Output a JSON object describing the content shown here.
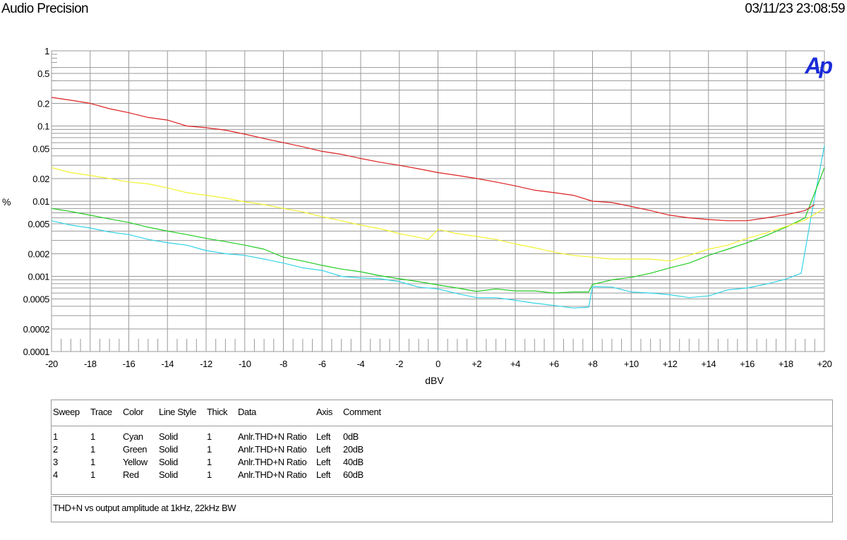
{
  "header": {
    "brand": "Audio Precision",
    "timestamp": "03/11/23 23:08:59"
  },
  "logo_text": "Ap",
  "colors": {
    "logo": "#1a2cd8",
    "grid": "#9a9a9a",
    "cyan": "#33d3e6",
    "green": "#22cc22",
    "yellow": "#f2f230",
    "red": "#dd2020"
  },
  "chart_data": {
    "type": "line",
    "xlabel": "dBV",
    "ylabel": "%",
    "xlim": [
      -20,
      20
    ],
    "ylim": [
      0.0001,
      1
    ],
    "yscale": "log",
    "grid": true,
    "x_ticks": [
      "-20",
      "-18",
      "-16",
      "-14",
      "-12",
      "-10",
      "-8",
      "-6",
      "-4",
      "-2",
      "0",
      "+2",
      "+4",
      "+6",
      "+8",
      "+10",
      "+12",
      "+14",
      "+16",
      "+18",
      "+20"
    ],
    "y_ticks": [
      "1",
      "0.5",
      "0.2",
      "0.1",
      "0.05",
      "0.02",
      "0.01",
      "0.005",
      "0.002",
      "0.001",
      "0.0005",
      "0.0002",
      "0.0001"
    ],
    "series": [
      {
        "name": "Cyan",
        "color": "#33d3e6",
        "x": [
          -20,
          -19,
          -18,
          -17,
          -16,
          -15,
          -14,
          -13,
          -12,
          -11,
          -10,
          -9,
          -8,
          -7,
          -6,
          -5,
          -4,
          -3,
          -2,
          -1,
          0,
          1,
          2,
          3,
          4,
          5,
          6,
          7,
          7.8,
          8,
          9,
          10,
          11,
          12,
          13,
          14,
          15,
          16,
          17,
          18,
          18.8,
          19.3,
          20
        ],
        "y": [
          0.0055,
          0.0048,
          0.0044,
          0.0039,
          0.0036,
          0.0031,
          0.0028,
          0.0026,
          0.0022,
          0.002,
          0.0019,
          0.0017,
          0.0015,
          0.0013,
          0.0012,
          0.001,
          0.00095,
          0.00093,
          0.00085,
          0.00072,
          0.00068,
          0.00059,
          0.00052,
          0.00052,
          0.00048,
          0.00044,
          0.00041,
          0.00038,
          0.00039,
          0.00073,
          0.00072,
          0.00062,
          0.0006,
          0.00057,
          0.00052,
          0.00055,
          0.00066,
          0.0007,
          0.00079,
          0.00092,
          0.0011,
          0.006,
          0.055
        ]
      },
      {
        "name": "Green",
        "color": "#22cc22",
        "x": [
          -20,
          -19,
          -18,
          -17,
          -16,
          -15,
          -14,
          -13,
          -12,
          -11,
          -10,
          -9,
          -8,
          -7,
          -6,
          -5,
          -4,
          -3,
          -2,
          -1,
          0,
          1,
          2,
          3,
          4,
          5,
          6,
          7,
          7.8,
          8,
          9,
          10,
          11,
          12,
          13,
          14,
          15,
          16,
          17,
          18,
          19,
          20
        ],
        "y": [
          0.008,
          0.0073,
          0.0065,
          0.0058,
          0.0052,
          0.0045,
          0.004,
          0.0036,
          0.0032,
          0.0029,
          0.0026,
          0.0023,
          0.0018,
          0.0016,
          0.0014,
          0.00125,
          0.00115,
          0.00102,
          0.00093,
          0.00085,
          0.00077,
          0.0007,
          0.00063,
          0.00068,
          0.00064,
          0.00064,
          0.0006,
          0.00062,
          0.00062,
          0.00078,
          0.0009,
          0.00097,
          0.0011,
          0.0013,
          0.0015,
          0.0019,
          0.0023,
          0.0028,
          0.0035,
          0.0045,
          0.006,
          0.028
        ]
      },
      {
        "name": "Yellow",
        "color": "#f2f230",
        "x": [
          -20,
          -19,
          -18,
          -17,
          -16,
          -15,
          -14,
          -13,
          -12,
          -11,
          -10,
          -9,
          -8,
          -7,
          -6,
          -5,
          -4,
          -3,
          -2,
          -1,
          -0.5,
          0,
          1,
          2,
          3,
          4,
          5,
          6,
          7,
          8,
          9,
          10,
          11,
          12,
          13,
          14,
          15,
          16,
          17,
          18,
          19,
          20
        ],
        "y": [
          0.028,
          0.024,
          0.022,
          0.02,
          0.018,
          0.017,
          0.015,
          0.013,
          0.012,
          0.011,
          0.0098,
          0.009,
          0.008,
          0.0072,
          0.0062,
          0.0055,
          0.0048,
          0.0043,
          0.0037,
          0.0033,
          0.0031,
          0.0042,
          0.0037,
          0.0034,
          0.0031,
          0.0027,
          0.0024,
          0.0021,
          0.0019,
          0.0018,
          0.0017,
          0.0017,
          0.0017,
          0.0016,
          0.0019,
          0.0023,
          0.0026,
          0.0032,
          0.0038,
          0.0046,
          0.0056,
          0.008
        ]
      },
      {
        "name": "Red",
        "color": "#dd2020",
        "x": [
          -20,
          -19,
          -18,
          -17,
          -16,
          -15,
          -14,
          -13,
          -12,
          -11,
          -10,
          -9,
          -8,
          -7,
          -6,
          -5,
          -4,
          -3,
          -2,
          -1,
          0,
          1,
          2,
          3,
          4,
          5,
          6,
          7,
          8,
          9,
          10,
          11,
          12,
          13,
          14,
          15,
          16,
          17,
          18,
          19,
          19.5
        ],
        "y": [
          0.24,
          0.22,
          0.2,
          0.17,
          0.15,
          0.13,
          0.12,
          0.1,
          0.095,
          0.088,
          0.078,
          0.068,
          0.06,
          0.053,
          0.046,
          0.042,
          0.037,
          0.033,
          0.03,
          0.027,
          0.024,
          0.022,
          0.02,
          0.018,
          0.016,
          0.014,
          0.013,
          0.012,
          0.01,
          0.0096,
          0.0085,
          0.0075,
          0.0065,
          0.006,
          0.0057,
          0.0055,
          0.0055,
          0.006,
          0.0066,
          0.0075,
          0.009
        ]
      }
    ]
  },
  "legend": {
    "headers": [
      "Sweep",
      "Trace",
      "Color",
      "Line Style",
      "Thick",
      "Data",
      "Axis",
      "Comment"
    ],
    "rows": [
      [
        "1",
        "1",
        "Cyan",
        "Solid",
        "1",
        "Anlr.THD+N Ratio",
        "Left",
        "0dB"
      ],
      [
        "2",
        "1",
        "Green",
        "Solid",
        "1",
        "Anlr.THD+N Ratio",
        "Left",
        "20dB"
      ],
      [
        "3",
        "1",
        "Yellow",
        "Solid",
        "1",
        "Anlr.THD+N Ratio",
        "Left",
        "40dB"
      ],
      [
        "4",
        "1",
        "Red",
        "Solid",
        "1",
        "Anlr.THD+N Ratio",
        "Left",
        "60dB"
      ]
    ]
  },
  "comment": "THD+N vs output amplitude at 1kHz, 22kHz BW"
}
